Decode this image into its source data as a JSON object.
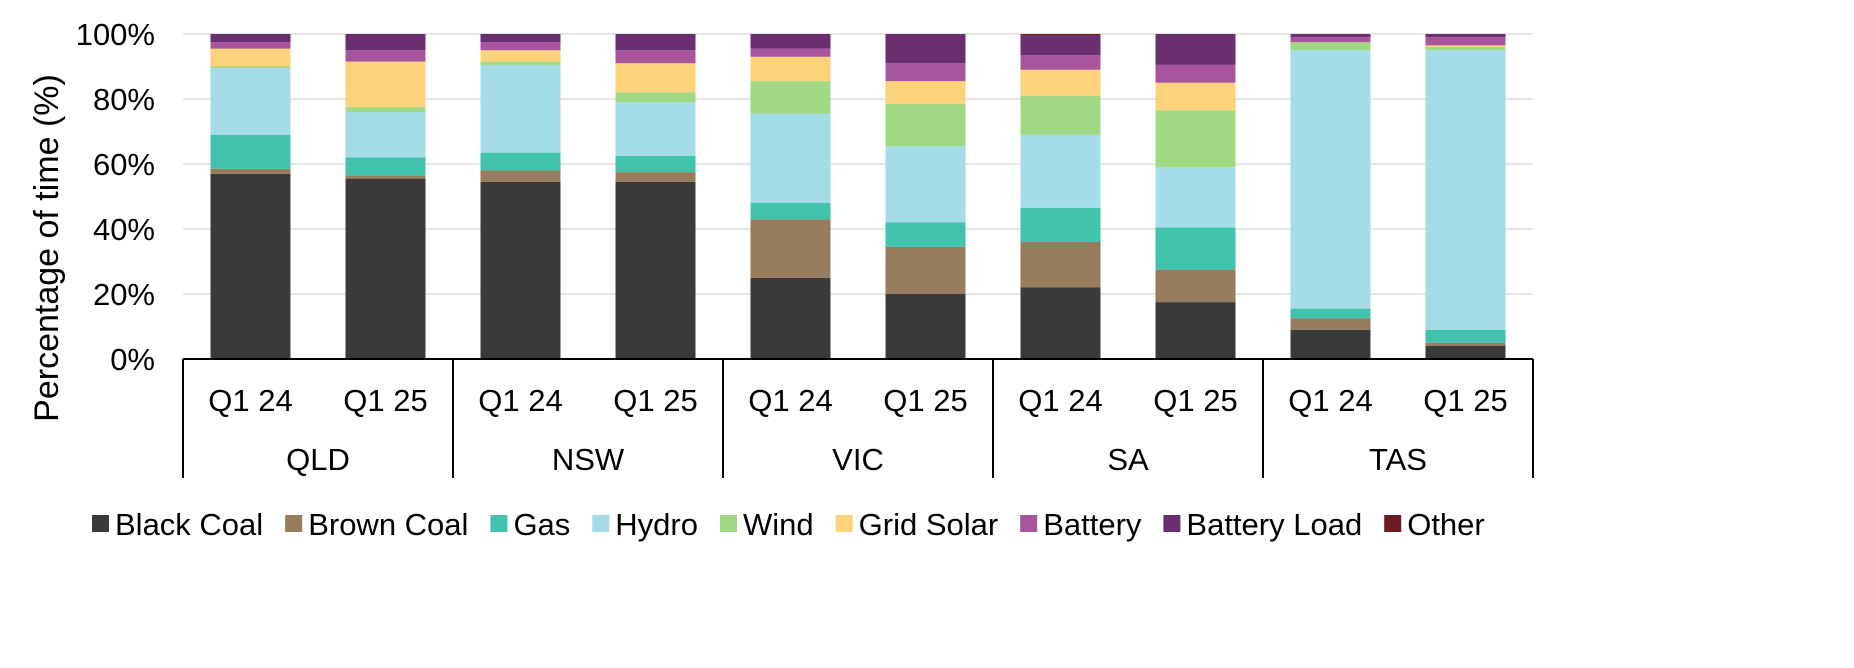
{
  "chart_data": {
    "type": "bar",
    "stacked": true,
    "ylabel": "Percentage of time (%)",
    "ylim": [
      0,
      100
    ],
    "yticks": [
      "0%",
      "20%",
      "40%",
      "60%",
      "80%",
      "100%"
    ],
    "grid": true,
    "legend_position": "bottom",
    "groups": [
      {
        "label": "QLD",
        "bars": [
          "Q1 24",
          "Q1 25"
        ]
      },
      {
        "label": "NSW",
        "bars": [
          "Q1 24",
          "Q1 25"
        ]
      },
      {
        "label": "VIC",
        "bars": [
          "Q1 24",
          "Q1 25"
        ]
      },
      {
        "label": "SA",
        "bars": [
          "Q1 24",
          "Q1 25"
        ]
      },
      {
        "label": "TAS",
        "bars": [
          "Q1 24",
          "Q1 25"
        ]
      }
    ],
    "categories": [
      "QLD Q1 24",
      "QLD Q1 25",
      "NSW Q1 24",
      "NSW Q1 25",
      "VIC Q1 24",
      "VIC Q1 25",
      "SA Q1 24",
      "SA Q1 25",
      "TAS Q1 24",
      "TAS Q1 25"
    ],
    "series": [
      {
        "name": "Black Coal",
        "color": "#3a3b39",
        "values": [
          57,
          55.5,
          54.5,
          54.5,
          25,
          20,
          22,
          17.5,
          9,
          4
        ]
      },
      {
        "name": "Brown Coal",
        "color": "#977c5d",
        "values": [
          1.5,
          1,
          3.5,
          3,
          18,
          14.5,
          14,
          10,
          3.5,
          1
        ]
      },
      {
        "name": "Gas",
        "color": "#42c3ad",
        "values": [
          10.5,
          5.5,
          5.5,
          5,
          5,
          7.5,
          10.5,
          13,
          3,
          4
        ]
      },
      {
        "name": "Hydro",
        "color": "#a4dce7",
        "values": [
          20.5,
          14,
          27,
          16.5,
          27.5,
          23.5,
          22.5,
          18.5,
          79.5,
          86
        ]
      },
      {
        "name": "Wind",
        "color": "#a1d883",
        "values": [
          0.5,
          1.5,
          1,
          3,
          10,
          13,
          12,
          17.5,
          2.5,
          1
        ]
      },
      {
        "name": "Grid Solar",
        "color": "#fcd27a",
        "values": [
          5.5,
          14,
          3.5,
          9,
          7.5,
          7,
          8,
          8.5,
          0,
          0.5
        ]
      },
      {
        "name": "Battery",
        "color": "#a9559d",
        "values": [
          2,
          3.5,
          2.5,
          4,
          2.5,
          5.5,
          4.5,
          5.5,
          1.5,
          2.5
        ]
      },
      {
        "name": "Battery Load",
        "color": "#6a2f71",
        "values": [
          2.5,
          5,
          2.5,
          5,
          4.5,
          9,
          6,
          9.5,
          1,
          1
        ]
      },
      {
        "name": "Other",
        "color": "#6d1a24",
        "values": [
          0,
          0,
          0,
          0,
          0,
          0,
          0.5,
          0,
          0,
          0
        ]
      }
    ]
  }
}
